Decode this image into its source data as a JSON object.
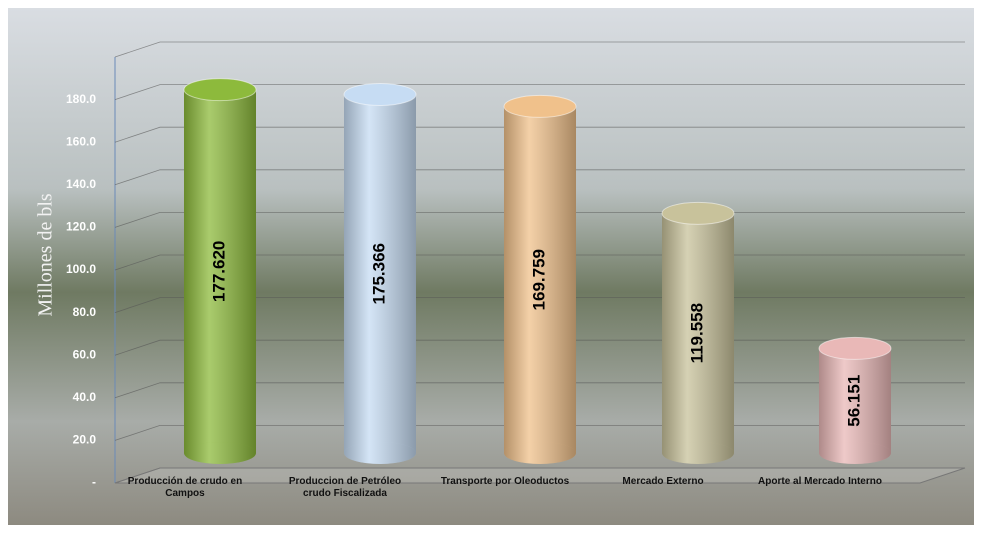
{
  "chart_data": {
    "type": "cylinder-bar",
    "y_axis_label": "Millones de bls",
    "categories": [
      "Producción de crudo en Campos",
      "Produccion de Petróleo crudo Fiscalizada",
      "Transporte por Oleoductos",
      "Mercado Externo",
      "Aporte al Mercado Interno"
    ],
    "values": [
      177.62,
      175.366,
      169.759,
      119.558,
      56.151
    ],
    "value_labels": [
      "177.620",
      "175.366",
      "169.759",
      "119.558",
      "56.151"
    ],
    "colors": [
      "#8dba3c",
      "#c6dcf3",
      "#f0c18b",
      "#c8c29b",
      "#e9b8b7"
    ],
    "ylim": [
      0,
      200
    ],
    "yticks": [
      {
        "value": 0,
        "label": "-"
      },
      {
        "value": 20,
        "label": "20.0"
      },
      {
        "value": 40,
        "label": "40.0"
      },
      {
        "value": 60,
        "label": "60.0"
      },
      {
        "value": 80,
        "label": "80.0"
      },
      {
        "value": 100,
        "label": "100.0"
      },
      {
        "value": 120,
        "label": "120.0"
      },
      {
        "value": 140,
        "label": "140.0"
      },
      {
        "value": 160,
        "label": "160.0"
      },
      {
        "value": 180,
        "label": "180.0"
      },
      {
        "value": 200,
        "label": ""
      }
    ],
    "grid": true
  }
}
